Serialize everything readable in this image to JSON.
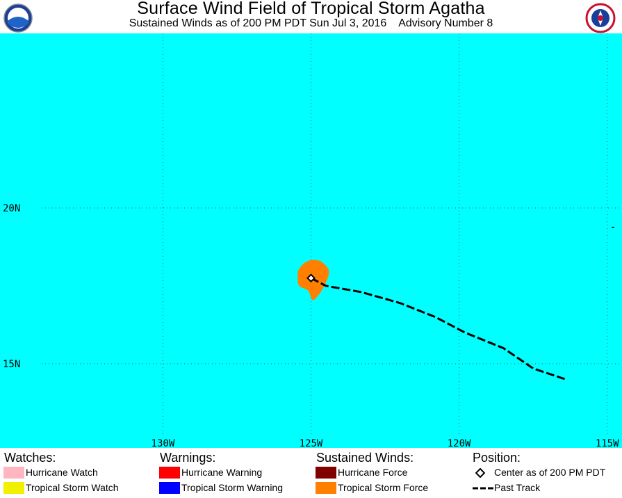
{
  "header": {
    "title": "Surface Wind Field of Tropical Storm Agatha",
    "subtitle": "Sustained Winds as of 200 PM PDT Sun Jul 3, 2016    Advisory Number 8",
    "left_logo": "noaa-logo",
    "right_logo": "nws-logo"
  },
  "map": {
    "ocean_color": "#00ffff",
    "grid_color": "#555555",
    "lat_labels": [
      "20N",
      "15N"
    ],
    "lon_labels": [
      "130W",
      "125W",
      "120W",
      "115W"
    ],
    "lon_range": [
      -135.5,
      -114.5
    ],
    "lat_range": [
      12.3,
      25.6
    ],
    "storm_center": {
      "lon": -125.0,
      "lat": 17.75
    },
    "past_track": [
      [
        -125.0,
        17.75
      ],
      [
        -124.5,
        17.5
      ],
      [
        -123.3,
        17.3
      ],
      [
        -122.0,
        16.95
      ],
      [
        -120.8,
        16.5
      ],
      [
        -119.8,
        16.0
      ],
      [
        -118.5,
        15.5
      ],
      [
        -117.5,
        14.85
      ],
      [
        -116.4,
        14.5
      ]
    ],
    "wind_field": {
      "type": "tropical-storm-force",
      "color": "#ff8000",
      "outline_lonlat": [
        [
          -125.4,
          18.05
        ],
        [
          -125.1,
          18.3
        ],
        [
          -124.7,
          18.3
        ],
        [
          -124.4,
          18.0
        ],
        [
          -124.5,
          17.6
        ],
        [
          -124.75,
          17.2
        ],
        [
          -124.95,
          17.05
        ],
        [
          -125.1,
          17.35
        ],
        [
          -125.4,
          17.5
        ],
        [
          -125.45,
          17.8
        ]
      ]
    }
  },
  "legend": {
    "watches": {
      "heading": "Watches:",
      "items": [
        {
          "label": "Hurricane Watch",
          "color": "#ffb6c1"
        },
        {
          "label": "Tropical Storm Watch",
          "color": "#f0f000"
        }
      ]
    },
    "warnings": {
      "heading": "Warnings:",
      "items": [
        {
          "label": "Hurricane Warning",
          "color": "#ff0000"
        },
        {
          "label": "Tropical Storm Warning",
          "color": "#0000ff"
        }
      ]
    },
    "winds": {
      "heading": "Sustained Winds:",
      "items": [
        {
          "label": "Hurricane Force",
          "color": "#800000"
        },
        {
          "label": "Tropical Storm Force",
          "color": "#ff8000"
        }
      ]
    },
    "position": {
      "heading": "Position:",
      "center_label": "Center as of 200 PM PDT",
      "track_label": "Past Track"
    }
  }
}
